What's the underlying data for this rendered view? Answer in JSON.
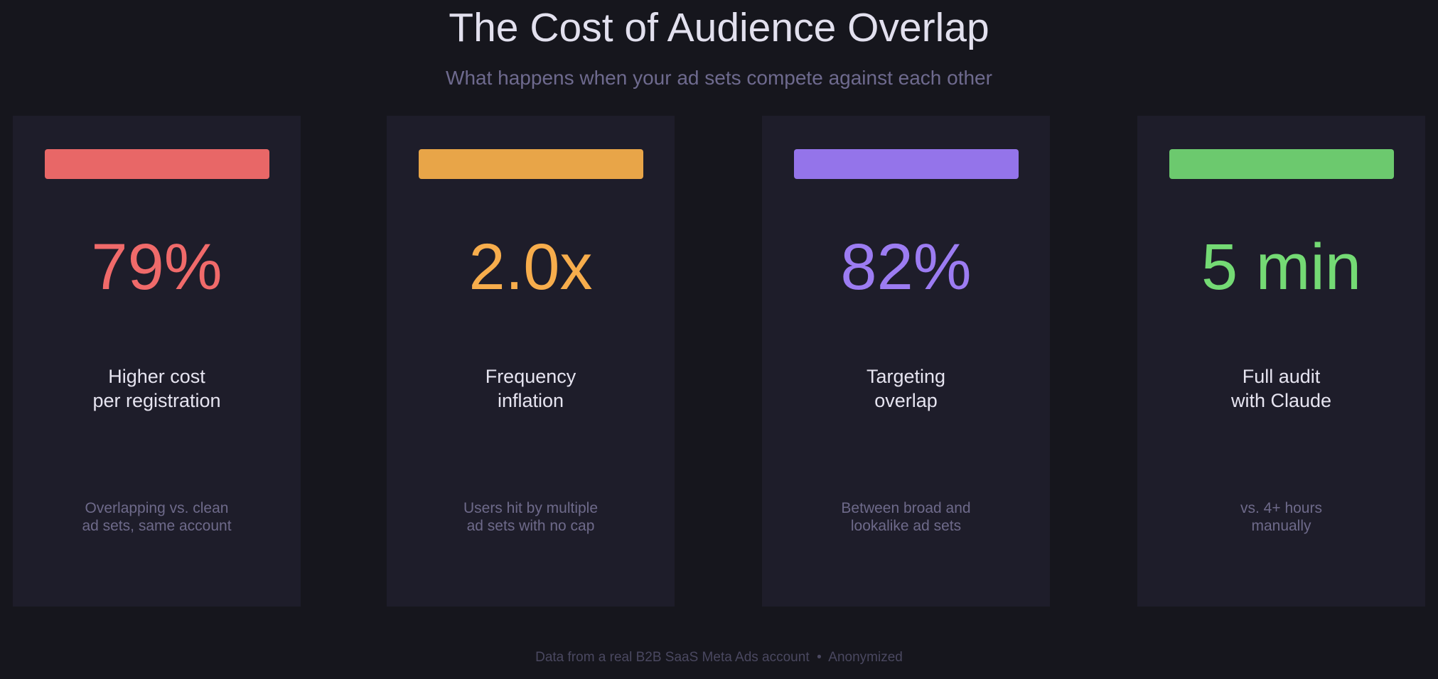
{
  "header": {
    "title": "The Cost of Audience Overlap",
    "subtitle": "What happens when your ad sets compete against each other"
  },
  "cards": [
    {
      "value": "79%",
      "label": [
        "Higher cost",
        "per registration"
      ],
      "note": [
        "Overlapping vs. clean",
        "ad sets, same account"
      ],
      "color": "#f06a6a",
      "bar_color": "#e86767"
    },
    {
      "value": "2.0x",
      "label": [
        "Frequency",
        "inflation"
      ],
      "note": [
        "Users hit by multiple",
        "ad sets with no cap"
      ],
      "color": "#f7ad4c",
      "bar_color": "#e8a548"
    },
    {
      "value": "82%",
      "label": [
        "Targeting",
        "overlap"
      ],
      "note": [
        "Between broad and",
        "lookalike ad sets"
      ],
      "color": "#9c7cf2",
      "bar_color": "#9474ea"
    },
    {
      "value": "5 min",
      "label": [
        "Full audit",
        "with Claude"
      ],
      "note": [
        "vs. 4+ hours",
        "manually"
      ],
      "color": "#74da74",
      "bar_color": "#6cc96e"
    }
  ],
  "footer": "Data from a real B2B SaaS Meta Ads account  •  Anonymized"
}
